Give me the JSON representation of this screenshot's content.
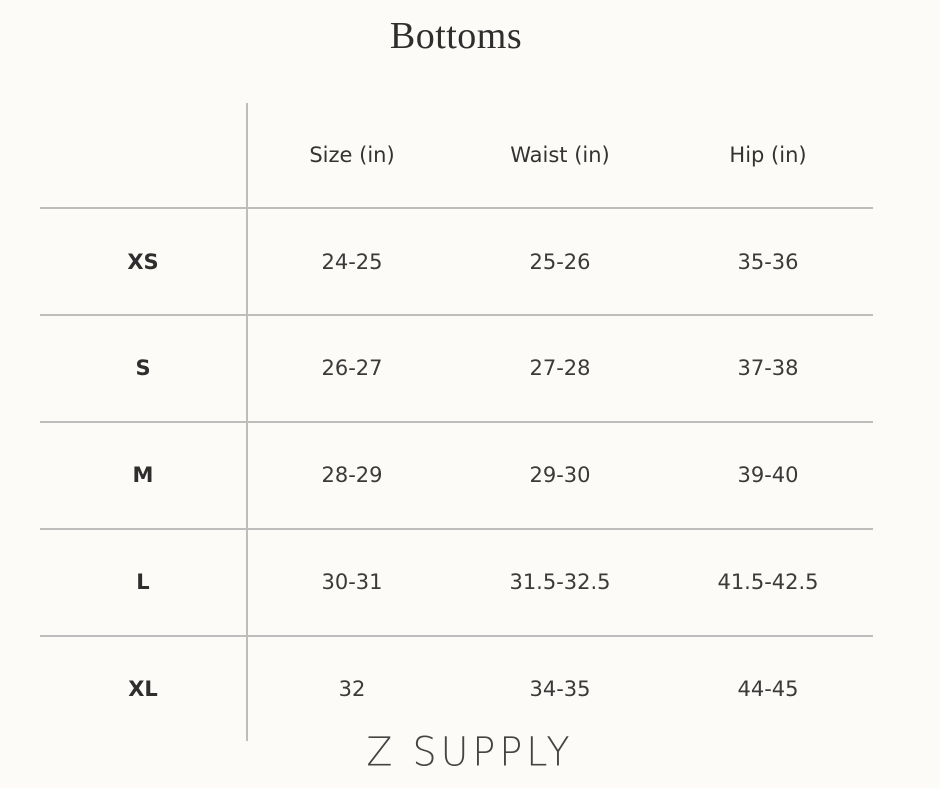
{
  "title": "Bottoms",
  "table": {
    "columns": [
      "Size (in)",
      "Waist (in)",
      "Hip (in)"
    ],
    "rows": [
      {
        "label": "XS",
        "values": [
          "24-25",
          "25-26",
          "35-36"
        ]
      },
      {
        "label": "S",
        "values": [
          "26-27",
          "27-28",
          "37-38"
        ]
      },
      {
        "label": "M",
        "values": [
          "28-29",
          "29-30",
          "39-40"
        ]
      },
      {
        "label": "L",
        "values": [
          "30-31",
          "31.5-32.5",
          "41.5-42.5"
        ]
      },
      {
        "label": "XL",
        "values": [
          "32",
          "34-35",
          "44-45"
        ]
      }
    ]
  },
  "brand": "Z SUPPLY",
  "colors": {
    "background": "#fcfbf8",
    "rule": "#bdbdbd",
    "text": "#333333"
  }
}
